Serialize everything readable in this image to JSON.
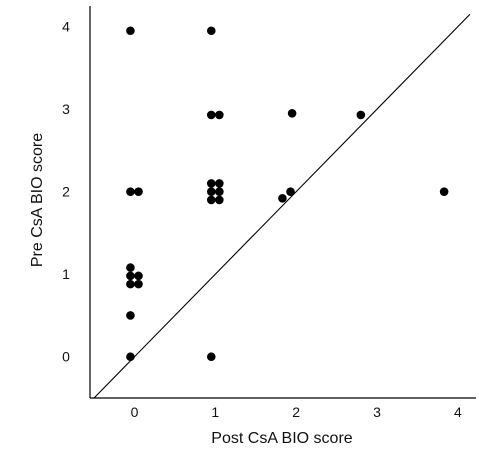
{
  "chart_data": {
    "type": "scatter",
    "title": "",
    "xlabel": "Post CsA BIO score",
    "ylabel": "Pre CsA BIO score",
    "xlim": [
      -0.55,
      4.15
    ],
    "ylim": [
      -0.5,
      4.25
    ],
    "xticks": [
      0,
      1,
      2,
      3,
      4
    ],
    "yticks": [
      0,
      1,
      2,
      3,
      4
    ],
    "x_tick_labels": [
      "0",
      "1",
      "2",
      "3",
      "4"
    ],
    "y_tick_labels": [
      "0",
      "1",
      "2",
      "3",
      "4"
    ],
    "grid": false,
    "legend": "none",
    "reference_line": "y = x",
    "point_color": "#000000",
    "series": [
      {
        "points": [
          {
            "x": -0.05,
            "y": 3.95
          },
          {
            "x": 0.95,
            "y": 3.95
          },
          {
            "x": 0.95,
            "y": 2.93
          },
          {
            "x": 1.05,
            "y": 2.93
          },
          {
            "x": 1.95,
            "y": 2.95
          },
          {
            "x": 2.8,
            "y": 2.93
          },
          {
            "x": -0.05,
            "y": 2.0
          },
          {
            "x": 0.05,
            "y": 2.0
          },
          {
            "x": 0.95,
            "y": 2.1
          },
          {
            "x": 1.05,
            "y": 2.1
          },
          {
            "x": 0.95,
            "y": 2.0
          },
          {
            "x": 1.05,
            "y": 2.0
          },
          {
            "x": 0.95,
            "y": 1.9
          },
          {
            "x": 1.05,
            "y": 1.9
          },
          {
            "x": 1.83,
            "y": 1.92
          },
          {
            "x": 1.93,
            "y": 2.0
          },
          {
            "x": 3.83,
            "y": 2.0
          },
          {
            "x": -0.05,
            "y": 1.08
          },
          {
            "x": -0.05,
            "y": 0.98
          },
          {
            "x": 0.05,
            "y": 0.98
          },
          {
            "x": -0.05,
            "y": 0.88
          },
          {
            "x": 0.05,
            "y": 0.88
          },
          {
            "x": -0.05,
            "y": 0.5
          },
          {
            "x": -0.05,
            "y": 0.0
          },
          {
            "x": 0.95,
            "y": 0.0
          }
        ]
      }
    ]
  }
}
